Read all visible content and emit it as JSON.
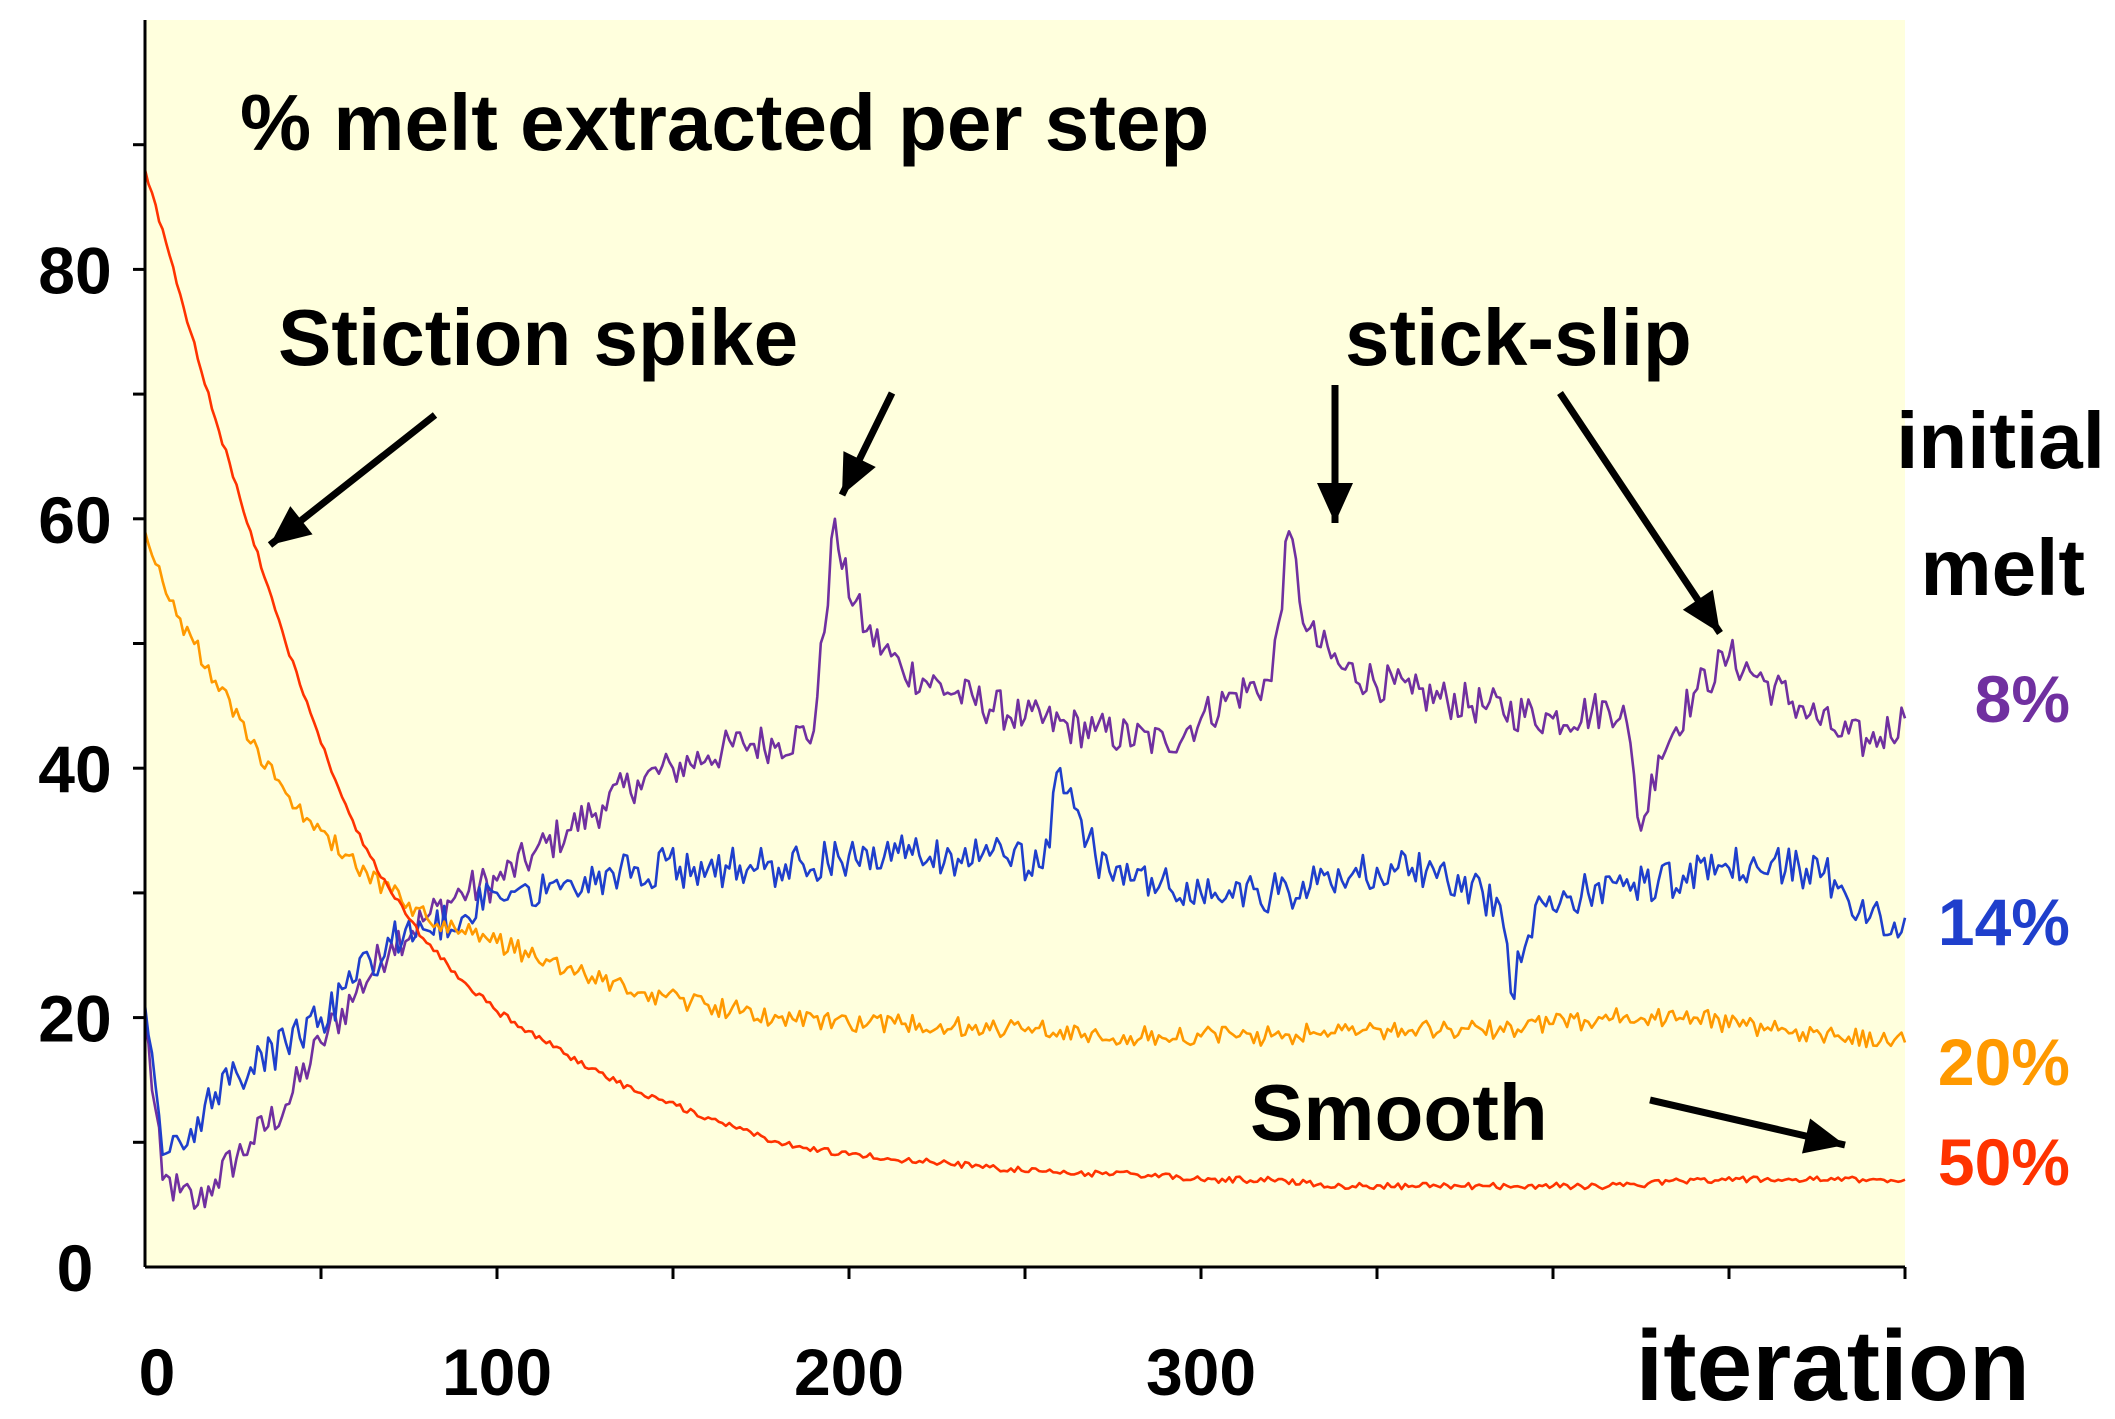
{
  "chart_data": {
    "type": "line",
    "title": "% melt extracted per step",
    "xlabel": "iteration",
    "ylabel": "",
    "xlim": [
      0,
      500
    ],
    "ylim": [
      0,
      100
    ],
    "xticks": [
      0,
      100,
      200,
      300
    ],
    "yticks": [
      0,
      20,
      40,
      60,
      80
    ],
    "legend_title": "initial melt",
    "legend_placement": "right",
    "colors": {
      "plot_background": "#FFFFDD",
      "axis": "#000000",
      "text": "#000000"
    },
    "annotations": [
      {
        "text": "Stiction spike",
        "target": "early 50% decline and 8% spike at ~197"
      },
      {
        "text": "stick-slip",
        "target": "8% spikes at ~325 and ~450"
      },
      {
        "text": "Smooth",
        "target": "50% series at ~480"
      }
    ],
    "series": [
      {
        "name": "8%",
        "color": "#7030A0",
        "x": [
          0,
          5,
          10,
          15,
          20,
          30,
          40,
          50,
          60,
          70,
          80,
          90,
          100,
          110,
          120,
          130,
          140,
          150,
          160,
          170,
          180,
          190,
          196,
          198,
          205,
          215,
          230,
          250,
          270,
          290,
          300,
          310,
          320,
          325,
          330,
          340,
          360,
          380,
          400,
          420,
          425,
          430,
          440,
          450,
          460,
          470,
          480,
          490,
          500
        ],
        "y": [
          20,
          7,
          6,
          5,
          7,
          10,
          13,
          18,
          22,
          26,
          28,
          30,
          31,
          33,
          35,
          37,
          39,
          40,
          41,
          42,
          42,
          43,
          60,
          56,
          51,
          48,
          46,
          44,
          43,
          42,
          44,
          46,
          47,
          59,
          51,
          48,
          46,
          45,
          44,
          45,
          35,
          41,
          46,
          49,
          47,
          45,
          43,
          42,
          44
        ]
      },
      {
        "name": "14%",
        "color": "#1F3FCC",
        "x": [
          0,
          5,
          10,
          15,
          20,
          30,
          40,
          50,
          60,
          70,
          80,
          90,
          100,
          120,
          140,
          160,
          180,
          200,
          220,
          240,
          255,
          260,
          262,
          270,
          280,
          300,
          320,
          340,
          350,
          360,
          370,
          385,
          388,
          395,
          410,
          430,
          450,
          470,
          480,
          490,
          500
        ],
        "y": [
          21,
          9,
          10,
          12,
          14,
          16,
          18,
          20,
          23,
          26,
          27,
          28,
          30,
          31,
          32,
          32,
          32,
          33,
          33,
          33,
          32,
          40,
          38,
          33,
          31,
          30,
          30,
          31,
          32,
          32,
          31,
          29,
          22,
          29,
          30,
          31,
          32,
          32,
          31,
          28,
          28
        ]
      },
      {
        "name": "20%",
        "color": "#FF9900",
        "x": [
          0,
          5,
          10,
          20,
          30,
          40,
          50,
          60,
          70,
          80,
          90,
          100,
          120,
          140,
          160,
          180,
          200,
          220,
          240,
          260,
          280,
          300,
          320,
          340,
          360,
          380,
          400,
          420,
          440,
          460,
          480,
          500
        ],
        "y": [
          59,
          55,
          52,
          47,
          42,
          38,
          35,
          32,
          30,
          28,
          27,
          26,
          24,
          22,
          21,
          20,
          19.5,
          19.5,
          19,
          19,
          18.5,
          18.5,
          18.5,
          19,
          19,
          19,
          19.5,
          20,
          20,
          19,
          18.5,
          18
        ]
      },
      {
        "name": "50%",
        "color": "#FF3300",
        "x": [
          0,
          10,
          20,
          30,
          40,
          50,
          60,
          70,
          80,
          90,
          100,
          120,
          140,
          160,
          180,
          200,
          220,
          240,
          260,
          280,
          300,
          320,
          340,
          360,
          380,
          400,
          420,
          440,
          460,
          480,
          500
        ],
        "y": [
          88,
          78,
          68,
          59,
          50,
          42,
          35,
          30,
          26,
          23,
          20.5,
          17,
          14,
          12,
          10,
          9,
          8.5,
          8,
          7.5,
          7.5,
          7,
          7,
          6.5,
          6.5,
          6.5,
          6.5,
          6.5,
          7,
          7,
          7,
          7
        ]
      }
    ]
  }
}
